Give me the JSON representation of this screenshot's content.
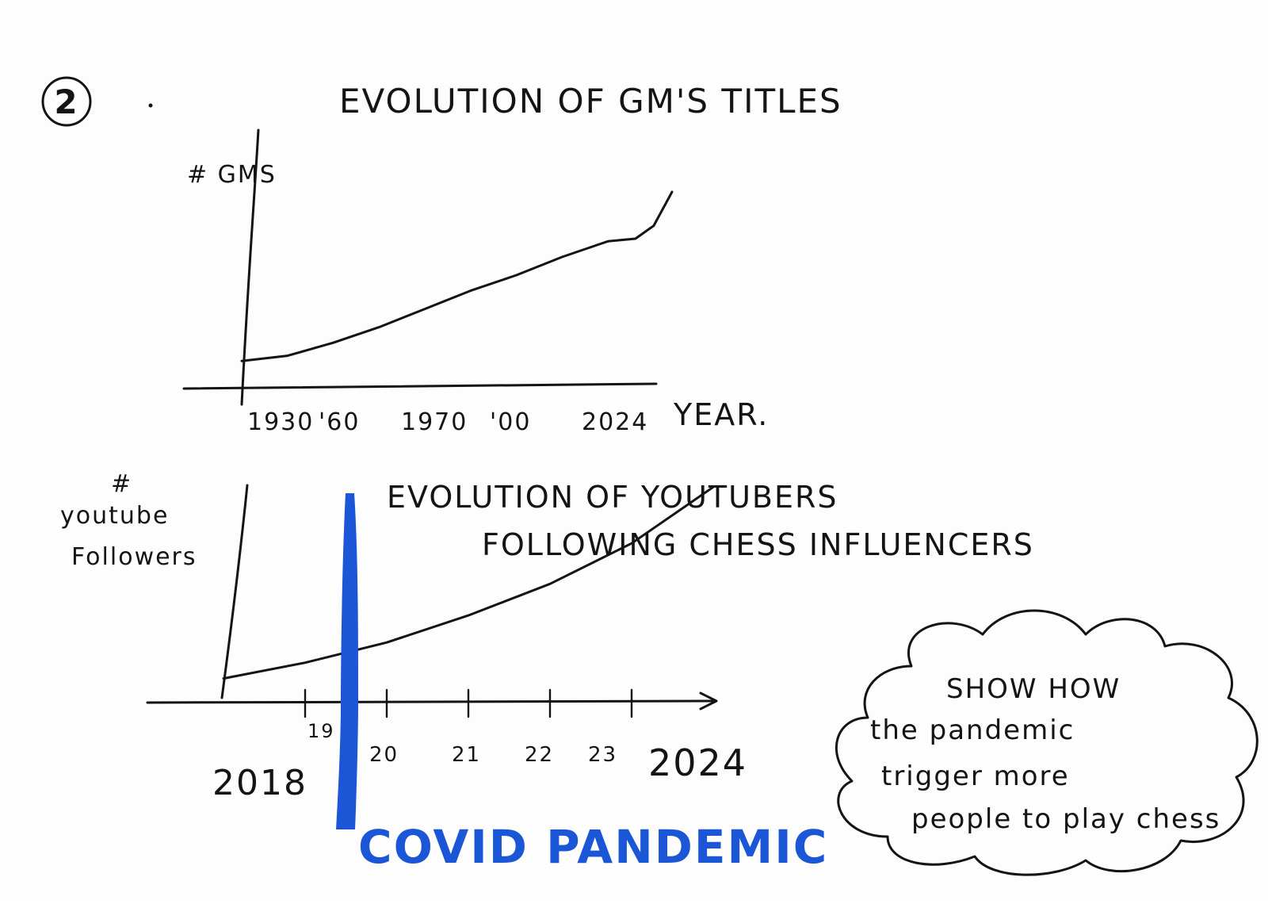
{
  "page_number": "2",
  "chart_data": [
    {
      "type": "line",
      "title": "EVOLUTION OF GM'S TITLES",
      "ylabel": "# GMS",
      "xlabel": "YEAR.",
      "x_tick_labels": [
        "1930",
        "'60",
        "1970",
        "'00",
        "2024"
      ],
      "x": [
        1930,
        1940,
        1950,
        1960,
        1970,
        1980,
        1990,
        2000,
        2010,
        2016,
        2020,
        2024
      ],
      "values": [
        10,
        12,
        17,
        23,
        30,
        37,
        43,
        50,
        56,
        57,
        62,
        75
      ],
      "ylim": [
        0,
        100
      ],
      "grid": false
    },
    {
      "type": "line",
      "title": "EVOLUTION OF YOUTUBERS FOLLOWING CHESS INFLUENCERS",
      "ylabel": "# youtube Followers",
      "x_tick_labels": [
        "2018",
        "19",
        "20",
        "21",
        "22",
        "23",
        "2024"
      ],
      "x": [
        2018,
        2019,
        2020,
        2021,
        2022,
        2023,
        2024
      ],
      "values": [
        10,
        17,
        26,
        38,
        52,
        70,
        95
      ],
      "ylim": [
        0,
        100
      ],
      "grid": false,
      "annotations": [
        {
          "text": "COVID PANDEMIC",
          "color": "#1a56d6",
          "x": 2019.5
        }
      ]
    }
  ],
  "note": "SHOW HOW the pandemic trigger more people to play chess"
}
